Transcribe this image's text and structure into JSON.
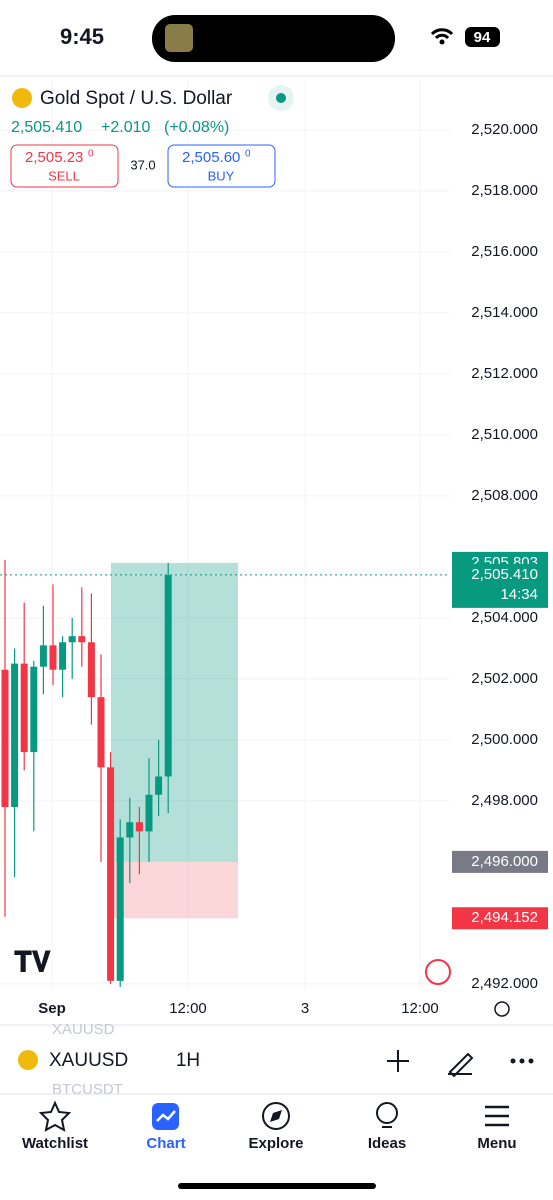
{
  "status_bar": {
    "time": "9:45",
    "battery": "94"
  },
  "header": {
    "title": "Gold Spot / U.S. Dollar",
    "price": "2,505.410",
    "change": "+2.010",
    "change_pct": "(+0.08%)",
    "sell": {
      "price": "2,505.23",
      "price_sup": "0",
      "label": "SELL"
    },
    "spread": "37.0",
    "buy": {
      "price": "2,505.60",
      "price_sup": "0",
      "label": "BUY"
    }
  },
  "chart_data": {
    "type": "candlestick",
    "ylim": [
      2491.8,
      2521.7
    ],
    "yticks": [
      {
        "value": 2492,
        "label": "2,492.000"
      },
      {
        "value": 2498,
        "label": "2,498.000"
      },
      {
        "value": 2500,
        "label": "2,500.000"
      },
      {
        "value": 2502,
        "label": "2,502.000"
      },
      {
        "value": 2504,
        "label": "2,504.000"
      },
      {
        "value": 2508,
        "label": "2,508.000"
      },
      {
        "value": 2510,
        "label": "2,510.000"
      },
      {
        "value": 2512,
        "label": "2,512.000"
      },
      {
        "value": 2514,
        "label": "2,514.000"
      },
      {
        "value": 2516,
        "label": "2,516.000"
      },
      {
        "value": 2518,
        "label": "2,518.000"
      },
      {
        "value": 2520,
        "label": "2,520.000"
      }
    ],
    "x_labels": [
      "Sep",
      "12:00",
      "3",
      "12:00"
    ],
    "open": [
      2502.3,
      2497.8,
      2502.5,
      2499.6,
      2502.4,
      2503.1,
      2502.3,
      2503.2,
      2503.4,
      2503.2,
      2501.4,
      2499.1,
      2492.1,
      2496.8,
      2497.3,
      2497.0,
      2498.2,
      2498.8
    ],
    "high": [
      2505.9,
      2503.0,
      2504.5,
      2502.6,
      2504.4,
      2505.1,
      2503.4,
      2504.0,
      2505.0,
      2504.8,
      2502.8,
      2499.6,
      2497.4,
      2498.1,
      2497.8,
      2499.4,
      2500.0,
      2505.8
    ],
    "low": [
      2494.2,
      2495.5,
      2499.0,
      2497.0,
      2501.5,
      2501.8,
      2501.4,
      2502.0,
      2502.4,
      2500.5,
      2496.0,
      2492.0,
      2491.9,
      2495.3,
      2495.6,
      2496.0,
      2497.5,
      2497.6
    ],
    "close": [
      2497.8,
      2502.5,
      2499.6,
      2502.4,
      2503.1,
      2502.3,
      2503.2,
      2503.4,
      2503.2,
      2501.4,
      2499.1,
      2492.1,
      2496.8,
      2497.3,
      2497.0,
      2498.2,
      2498.8,
      2505.4
    ],
    "up_color": "#089981",
    "down_color": "#f23645",
    "price_tags": [
      {
        "value": 2505.803,
        "label": "2,505.803",
        "color": "#089981"
      },
      {
        "value": 2505.41,
        "label": "2,505.410",
        "extra": "14:34",
        "color": "#089981"
      },
      {
        "value": 2496.0,
        "label": "2,496.000",
        "color": "#787b86"
      },
      {
        "value": 2494.152,
        "label": "2,494.152",
        "color": "#f23645"
      }
    ]
  },
  "toolbar": {
    "symbol": "XAUUSD",
    "interval": "1H",
    "ghost_above": "XAUUSD",
    "ghost_below": "BTCUSDT"
  },
  "tab_bar": [
    "Watchlist",
    "Chart",
    "Explore",
    "Ideas",
    "Menu"
  ]
}
